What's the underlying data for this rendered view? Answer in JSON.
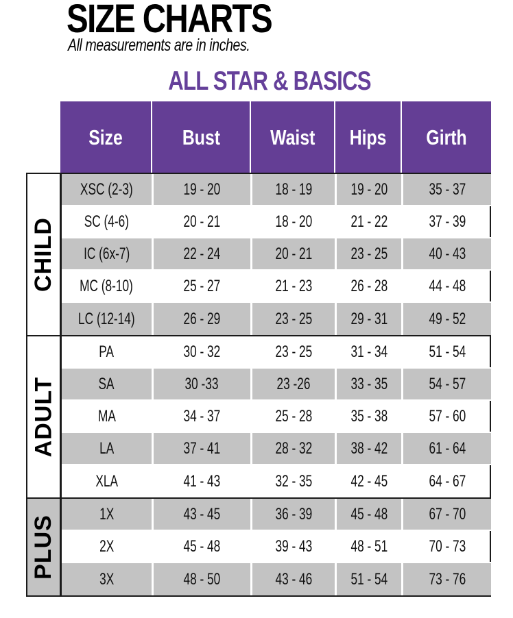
{
  "title": "SIZE CHARTS",
  "subtitle": "All measurements are in inches.",
  "section_title": "ALL STAR & BASICS",
  "colors": {
    "header": "#643e95",
    "section_title": "#65409a",
    "stripe": "#c3c3c3"
  },
  "columns": [
    "Size",
    "Bust",
    "Waist",
    "Hips",
    "Girth"
  ],
  "groups": [
    {
      "label": "CHILD",
      "rows": [
        [
          "XSC (2-3)",
          "19 - 20",
          "18 - 19",
          "19 - 20",
          "35 - 37"
        ],
        [
          "SC (4-6)",
          "20 - 21",
          "18 - 20",
          "21 - 22",
          "37 - 39"
        ],
        [
          "IC (6x-7)",
          "22 - 24",
          "20 - 21",
          "23 - 25",
          "40 - 43"
        ],
        [
          "MC (8-10)",
          "25 - 27",
          "21 - 23",
          "26 - 28",
          "44 - 48"
        ],
        [
          "LC (12-14)",
          "26 - 29",
          "23 - 25",
          "29 - 31",
          "49 - 52"
        ]
      ]
    },
    {
      "label": "ADULT",
      "rows": [
        [
          "PA",
          "30 - 32",
          "23 - 25",
          "31 - 34",
          "51 - 54"
        ],
        [
          "SA",
          "30 -33",
          "23 -26",
          "33 - 35",
          "54 - 57"
        ],
        [
          "MA",
          "34 - 37",
          "25 - 28",
          "35 - 38",
          "57 - 60"
        ],
        [
          "LA",
          "37 - 41",
          "28 - 32",
          "38 - 42",
          "61 - 64"
        ],
        [
          "XLA",
          "41 - 43",
          "32 - 35",
          "42 - 45",
          "64 - 67"
        ]
      ]
    },
    {
      "label": "PLUS",
      "rows": [
        [
          "1X",
          "43 - 45",
          "36 - 39",
          "45 - 48",
          "67 - 70"
        ],
        [
          "2X",
          "45 - 48",
          "39 - 43",
          "48 - 51",
          "70 - 73"
        ],
        [
          "3X",
          "48 - 50",
          "43 - 46",
          "51 - 54",
          "73 - 76"
        ]
      ]
    }
  ]
}
